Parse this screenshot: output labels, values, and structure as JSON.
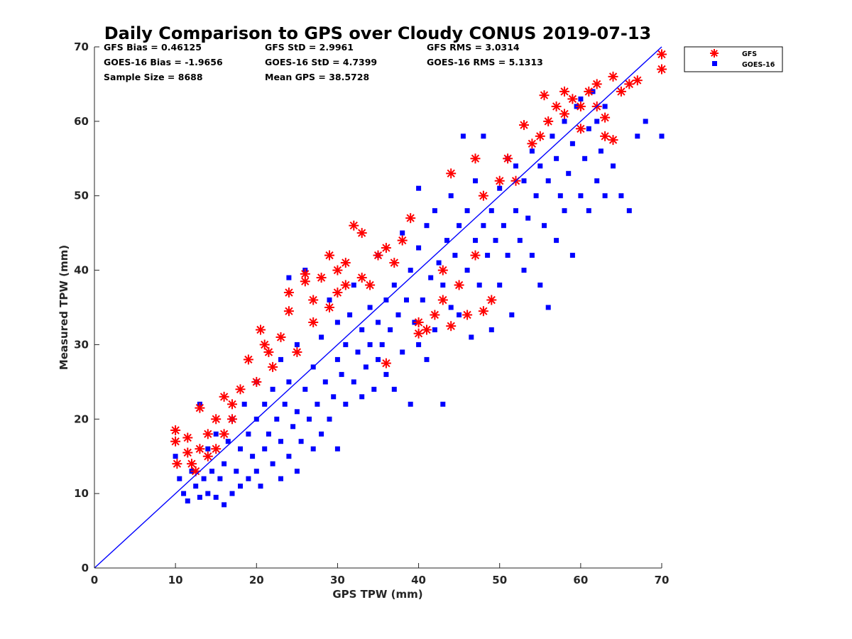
{
  "chart_data": {
    "type": "scatter",
    "title": "Daily Comparison to GPS over Cloudy CONUS 2019-07-13",
    "xlabel": "GPS TPW (mm)",
    "ylabel": "Measured TPW (mm)",
    "xlim": [
      0,
      70
    ],
    "ylim": [
      0,
      70
    ],
    "xticks": [
      "0",
      "10",
      "20",
      "30",
      "40",
      "50",
      "60",
      "70"
    ],
    "yticks": [
      "0",
      "10",
      "20",
      "30",
      "40",
      "50",
      "60",
      "70"
    ],
    "grid": false,
    "legend_position": "outside-top-right",
    "stats": [
      [
        "GFS Bias = 0.46125",
        "GFS StD = 2.9961",
        "GFS RMS = 3.0314"
      ],
      [
        "GOES-16 Bias = -1.9656",
        "GOES-16 StD = 4.7399",
        "GOES-16 RMS = 5.1313"
      ],
      [
        "Sample Size = 8688",
        "Mean GPS = 38.5728",
        ""
      ]
    ],
    "reference_line": {
      "x": [
        0,
        70
      ],
      "y": [
        0,
        70
      ],
      "color": "#0000ff"
    },
    "series": [
      {
        "name": "GOES-16",
        "marker": "square",
        "color": "#0000ff",
        "points": [
          [
            10,
            15
          ],
          [
            10.5,
            12
          ],
          [
            11,
            10
          ],
          [
            11.5,
            9
          ],
          [
            12,
            13
          ],
          [
            12.5,
            11
          ],
          [
            13,
            22
          ],
          [
            13,
            9.5
          ],
          [
            13.5,
            12
          ],
          [
            14,
            10
          ],
          [
            14,
            16
          ],
          [
            14.5,
            13
          ],
          [
            15,
            9.5
          ],
          [
            15,
            18
          ],
          [
            15.5,
            12
          ],
          [
            16,
            8.5
          ],
          [
            16,
            14
          ],
          [
            16.5,
            17
          ],
          [
            17,
            10
          ],
          [
            17,
            20
          ],
          [
            17.5,
            13
          ],
          [
            18,
            11
          ],
          [
            18,
            16
          ],
          [
            18.5,
            22
          ],
          [
            19,
            12
          ],
          [
            19,
            18
          ],
          [
            19.5,
            15
          ],
          [
            20,
            13
          ],
          [
            20,
            20
          ],
          [
            20,
            25
          ],
          [
            20.5,
            11
          ],
          [
            21,
            16
          ],
          [
            21,
            22
          ],
          [
            21.5,
            18
          ],
          [
            22,
            14
          ],
          [
            22,
            24
          ],
          [
            22.5,
            20
          ],
          [
            23,
            12
          ],
          [
            23,
            17
          ],
          [
            23,
            28
          ],
          [
            23.5,
            22
          ],
          [
            24,
            15
          ],
          [
            24,
            25
          ],
          [
            24,
            39
          ],
          [
            24.5,
            19
          ],
          [
            25,
            13
          ],
          [
            25,
            21
          ],
          [
            25,
            30
          ],
          [
            25.5,
            17
          ],
          [
            26,
            24
          ],
          [
            26,
            40
          ],
          [
            26.5,
            20
          ],
          [
            27,
            16
          ],
          [
            27,
            27
          ],
          [
            27.5,
            22
          ],
          [
            28,
            18
          ],
          [
            28,
            31
          ],
          [
            28.5,
            25
          ],
          [
            29,
            20
          ],
          [
            29,
            36
          ],
          [
            29.5,
            23
          ],
          [
            30,
            16
          ],
          [
            30,
            28
          ],
          [
            30,
            33
          ],
          [
            30.5,
            26
          ],
          [
            31,
            22
          ],
          [
            31,
            30
          ],
          [
            31.5,
            34
          ],
          [
            32,
            25
          ],
          [
            32,
            38
          ],
          [
            32.5,
            29
          ],
          [
            33,
            23
          ],
          [
            33,
            32
          ],
          [
            33.5,
            27
          ],
          [
            34,
            30
          ],
          [
            34,
            35
          ],
          [
            34.5,
            24
          ],
          [
            35,
            28
          ],
          [
            35,
            33
          ],
          [
            35,
            42
          ],
          [
            35.5,
            30
          ],
          [
            36,
            26
          ],
          [
            36,
            36
          ],
          [
            36.5,
            32
          ],
          [
            37,
            24
          ],
          [
            37,
            38
          ],
          [
            37.5,
            34
          ],
          [
            38,
            29
          ],
          [
            38,
            45
          ],
          [
            38.5,
            36
          ],
          [
            39,
            22
          ],
          [
            39,
            40
          ],
          [
            39.5,
            33
          ],
          [
            40,
            30
          ],
          [
            40,
            43
          ],
          [
            40,
            51
          ],
          [
            40.5,
            36
          ],
          [
            41,
            28
          ],
          [
            41,
            46
          ],
          [
            41.5,
            39
          ],
          [
            42,
            32
          ],
          [
            42,
            48
          ],
          [
            42.5,
            41
          ],
          [
            43,
            22
          ],
          [
            43,
            38
          ],
          [
            43.5,
            44
          ],
          [
            44,
            35
          ],
          [
            44,
            50
          ],
          [
            44.5,
            42
          ],
          [
            45,
            34
          ],
          [
            45,
            46
          ],
          [
            45.5,
            58
          ],
          [
            46,
            40
          ],
          [
            46,
            48
          ],
          [
            46.5,
            31
          ],
          [
            47,
            44
          ],
          [
            47,
            52
          ],
          [
            47.5,
            38
          ],
          [
            48,
            46
          ],
          [
            48,
            58
          ],
          [
            48.5,
            42
          ],
          [
            49,
            32
          ],
          [
            49,
            48
          ],
          [
            49.5,
            44
          ],
          [
            50,
            38
          ],
          [
            50,
            51
          ],
          [
            50.5,
            46
          ],
          [
            51,
            42
          ],
          [
            51,
            55
          ],
          [
            51.5,
            34
          ],
          [
            52,
            48
          ],
          [
            52,
            54
          ],
          [
            52.5,
            44
          ],
          [
            53,
            40
          ],
          [
            53,
            52
          ],
          [
            53.5,
            47
          ],
          [
            54,
            42
          ],
          [
            54,
            56
          ],
          [
            54.5,
            50
          ],
          [
            55,
            38
          ],
          [
            55,
            54
          ],
          [
            55.5,
            46
          ],
          [
            56,
            35
          ],
          [
            56,
            52
          ],
          [
            56.5,
            58
          ],
          [
            57,
            44
          ],
          [
            57,
            55
          ],
          [
            57.5,
            50
          ],
          [
            58,
            48
          ],
          [
            58,
            60
          ],
          [
            58.5,
            53
          ],
          [
            59,
            42
          ],
          [
            59,
            57
          ],
          [
            59.5,
            62
          ],
          [
            60,
            50
          ],
          [
            60,
            63
          ],
          [
            60.5,
            55
          ],
          [
            61,
            48
          ],
          [
            61,
            59
          ],
          [
            61.5,
            64
          ],
          [
            62,
            52
          ],
          [
            62,
            60
          ],
          [
            62.5,
            56
          ],
          [
            63,
            50
          ],
          [
            63,
            62
          ],
          [
            64,
            54
          ],
          [
            65,
            50
          ],
          [
            66,
            48
          ],
          [
            67,
            58
          ],
          [
            68,
            60
          ],
          [
            70,
            58
          ]
        ]
      },
      {
        "name": "GFS",
        "marker": "asterisk",
        "color": "#ff0000",
        "points": [
          [
            10,
            18.5
          ],
          [
            10,
            17
          ],
          [
            10.2,
            14
          ],
          [
            11.5,
            17.5
          ],
          [
            11.5,
            15.5
          ],
          [
            12,
            14
          ],
          [
            12.5,
            13
          ],
          [
            13,
            21.5
          ],
          [
            13,
            16
          ],
          [
            14,
            15
          ],
          [
            14,
            18
          ],
          [
            15,
            20
          ],
          [
            15,
            16
          ],
          [
            16,
            23
          ],
          [
            16,
            18
          ],
          [
            17,
            20
          ],
          [
            17,
            22
          ],
          [
            18,
            24
          ],
          [
            19,
            28
          ],
          [
            20,
            25
          ],
          [
            20.5,
            32
          ],
          [
            21,
            30
          ],
          [
            21.5,
            29
          ],
          [
            22,
            27
          ],
          [
            23,
            31
          ],
          [
            24,
            34.5
          ],
          [
            24,
            37
          ],
          [
            25,
            29
          ],
          [
            26,
            38.5
          ],
          [
            26,
            39.5
          ],
          [
            27,
            33
          ],
          [
            27,
            36
          ],
          [
            28,
            39
          ],
          [
            29,
            35
          ],
          [
            29,
            42
          ],
          [
            30,
            40
          ],
          [
            30,
            37
          ],
          [
            31,
            41
          ],
          [
            31,
            38
          ],
          [
            32,
            46
          ],
          [
            33,
            45
          ],
          [
            33,
            39
          ],
          [
            34,
            38
          ],
          [
            35,
            42
          ],
          [
            36,
            43
          ],
          [
            36,
            27.5
          ],
          [
            37,
            41
          ],
          [
            38,
            44
          ],
          [
            39,
            47
          ],
          [
            40,
            33
          ],
          [
            40,
            31.5
          ],
          [
            41,
            32
          ],
          [
            42,
            34
          ],
          [
            43,
            36
          ],
          [
            43,
            40
          ],
          [
            44,
            53
          ],
          [
            44,
            32.5
          ],
          [
            45,
            38
          ],
          [
            46,
            34
          ],
          [
            47,
            42
          ],
          [
            47,
            55
          ],
          [
            48,
            34.5
          ],
          [
            48,
            50
          ],
          [
            49,
            36
          ],
          [
            50,
            52
          ],
          [
            51,
            55
          ],
          [
            52,
            52
          ],
          [
            53,
            59.5
          ],
          [
            54,
            57
          ],
          [
            55,
            58
          ],
          [
            55.5,
            63.5
          ],
          [
            56,
            60
          ],
          [
            57,
            62
          ],
          [
            58,
            61
          ],
          [
            58,
            64
          ],
          [
            59,
            63
          ],
          [
            60,
            59
          ],
          [
            60,
            62
          ],
          [
            61,
            64
          ],
          [
            62,
            62
          ],
          [
            62,
            65
          ],
          [
            63,
            60.5
          ],
          [
            63,
            58
          ],
          [
            64,
            66
          ],
          [
            64,
            57.5
          ],
          [
            65,
            64
          ],
          [
            66,
            65
          ],
          [
            67,
            65.5
          ],
          [
            70,
            69
          ],
          [
            70,
            67
          ]
        ]
      }
    ]
  }
}
